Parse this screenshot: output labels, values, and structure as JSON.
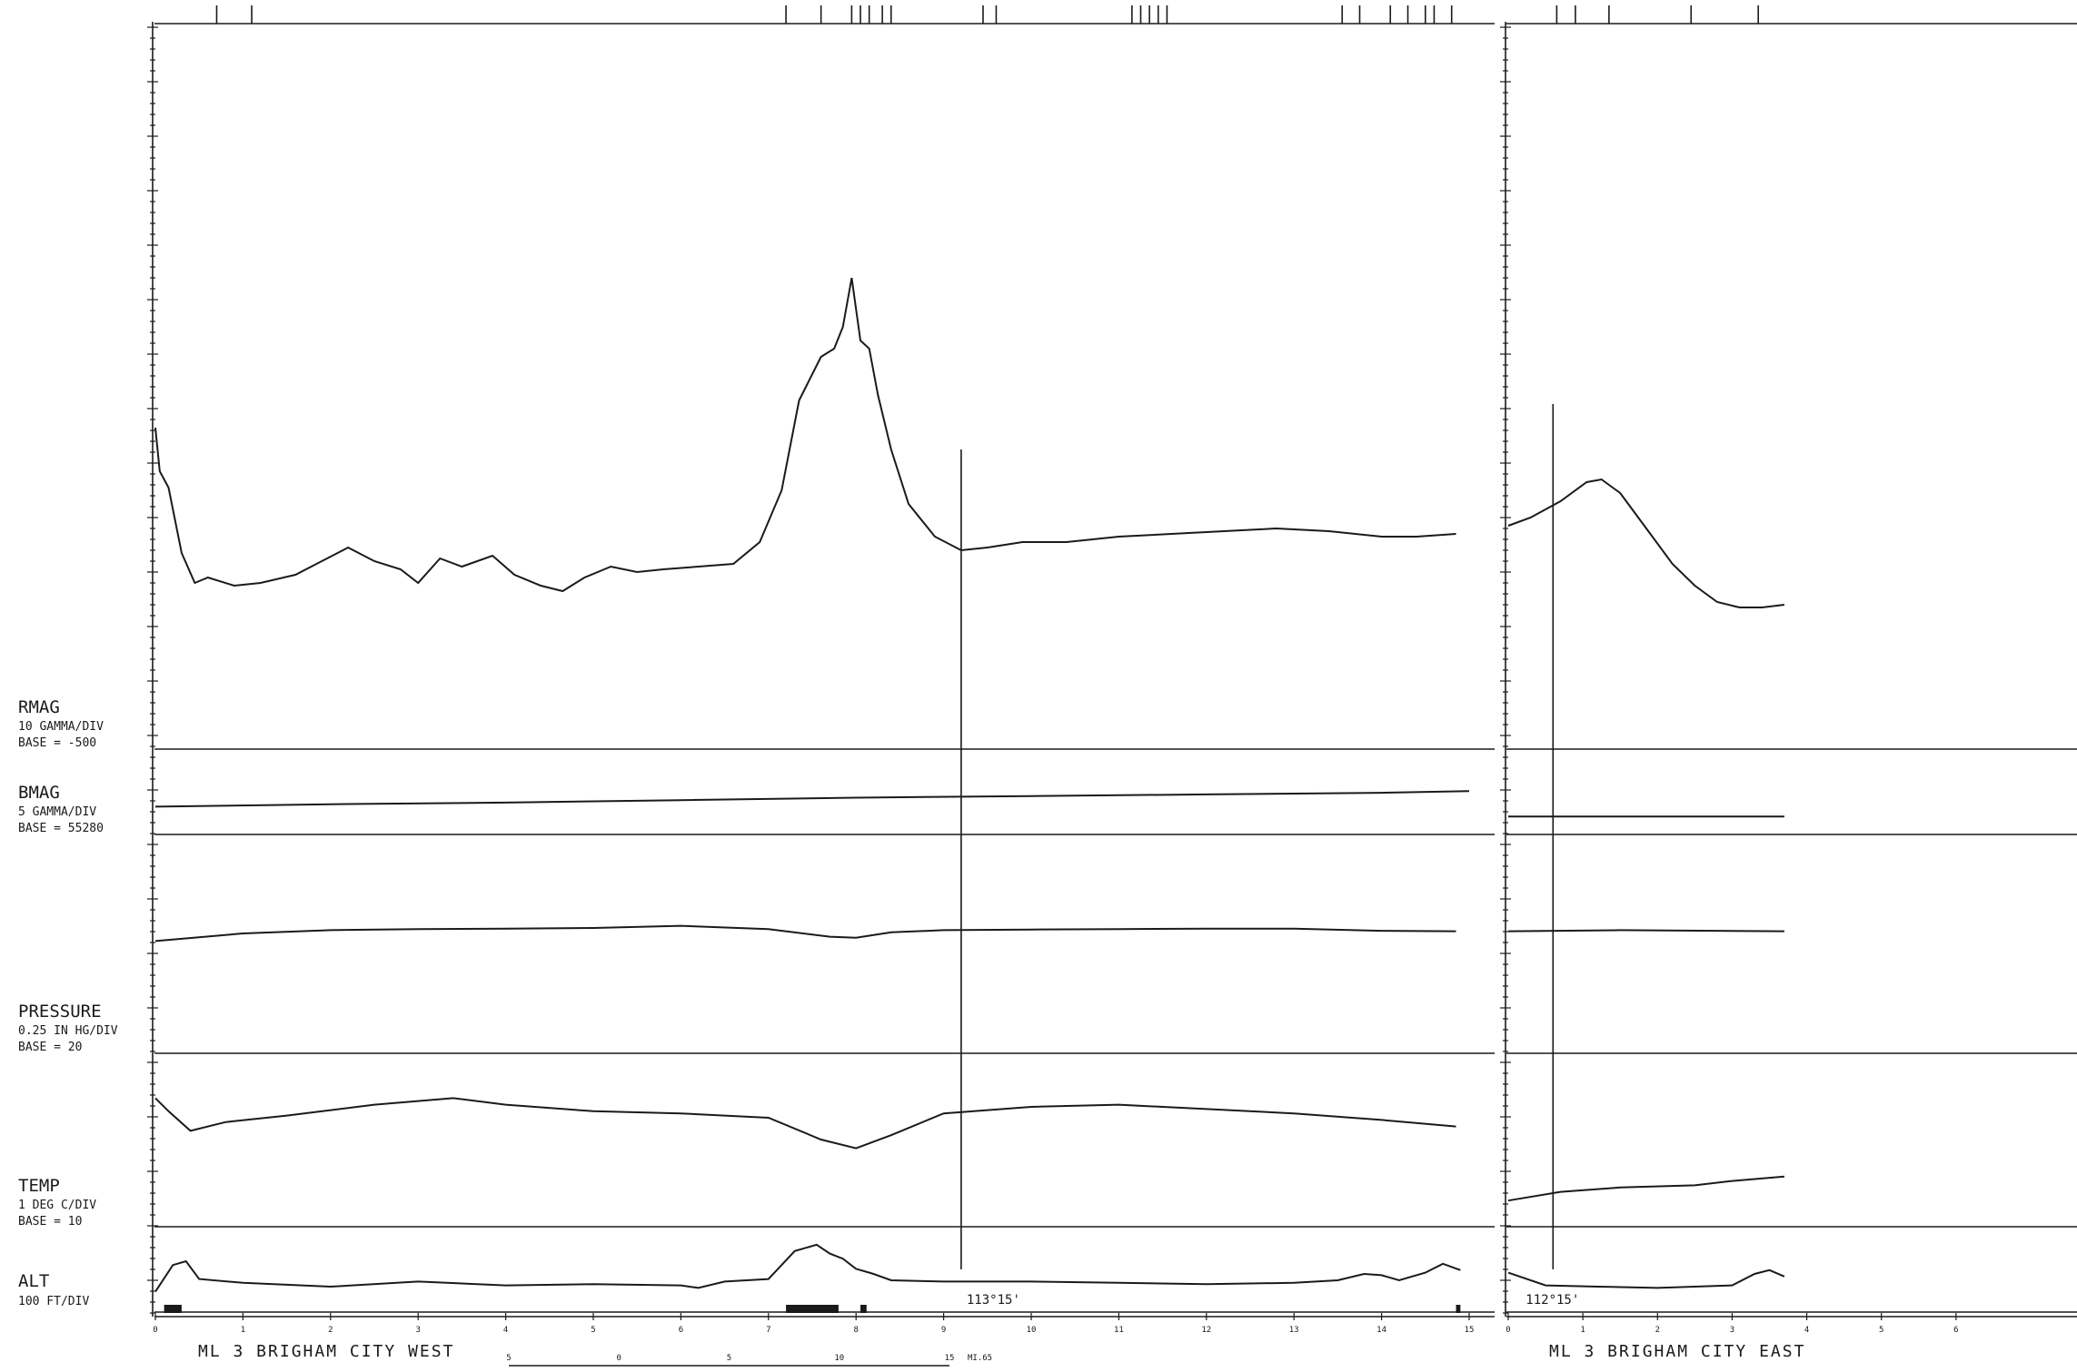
{
  "chart_data": {
    "type": "line",
    "panels": [
      {
        "id": "west",
        "title": "ML  3   BRIGHAM CITY WEST",
        "x_ticks": [
          "0",
          "1",
          "2",
          "3",
          "4",
          "5",
          "6",
          "7",
          "8",
          "9",
          "10",
          "11",
          "12",
          "13",
          "14",
          "15"
        ],
        "xlim": [
          0,
          15
        ],
        "annotation": "113°15'",
        "annotation_x": 9.2,
        "fiducials": [
          0.7,
          1.1,
          7.2,
          7.6,
          7.95,
          8.05,
          8.15,
          8.3,
          8.4,
          9.45,
          9.6,
          11.15,
          11.25,
          11.35,
          11.45,
          11.55,
          13.55,
          13.75,
          14.1,
          14.3,
          14.5,
          14.6,
          14.8
        ]
      },
      {
        "id": "east",
        "title": "ML  3   BRIGHAM CITY EAST",
        "x_ticks": [
          "0",
          "1",
          "2",
          "3",
          "4",
          "5",
          "6"
        ],
        "xlim": [
          0,
          6.5
        ],
        "annotation": "112°15'",
        "annotation_x": 0.6,
        "fiducials": [
          0.65,
          0.9,
          1.35,
          2.45,
          3.35
        ]
      }
    ],
    "series": [
      {
        "name": "RMAG",
        "unit": "10 GAMMA/DIV",
        "base": "BASE =  -500",
        "west": [
          [
            0,
            11.8
          ],
          [
            0.05,
            10.2
          ],
          [
            0.15,
            9.6
          ],
          [
            0.3,
            7.2
          ],
          [
            0.45,
            6.1
          ],
          [
            0.6,
            6.3
          ],
          [
            0.9,
            6.0
          ],
          [
            1.2,
            6.1
          ],
          [
            1.6,
            6.4
          ],
          [
            1.9,
            6.9
          ],
          [
            2.2,
            7.4
          ],
          [
            2.5,
            6.9
          ],
          [
            2.8,
            6.6
          ],
          [
            3.0,
            6.1
          ],
          [
            3.25,
            7.0
          ],
          [
            3.5,
            6.7
          ],
          [
            3.85,
            7.1
          ],
          [
            4.1,
            6.4
          ],
          [
            4.4,
            6.0
          ],
          [
            4.65,
            5.8
          ],
          [
            4.9,
            6.3
          ],
          [
            5.2,
            6.7
          ],
          [
            5.5,
            6.5
          ],
          [
            5.8,
            6.6
          ],
          [
            6.2,
            6.7
          ],
          [
            6.6,
            6.8
          ],
          [
            6.9,
            7.6
          ],
          [
            7.15,
            9.5
          ],
          [
            7.35,
            12.8
          ],
          [
            7.6,
            14.4
          ],
          [
            7.75,
            14.7
          ],
          [
            7.85,
            15.5
          ],
          [
            7.95,
            17.3
          ],
          [
            8.05,
            15.0
          ],
          [
            8.15,
            14.7
          ],
          [
            8.25,
            13.0
          ],
          [
            8.4,
            11.0
          ],
          [
            8.6,
            9.0
          ],
          [
            8.9,
            7.8
          ],
          [
            9.2,
            7.3
          ],
          [
            9.5,
            7.4
          ],
          [
            9.9,
            7.6
          ],
          [
            10.4,
            7.6
          ],
          [
            11.0,
            7.8
          ],
          [
            11.6,
            7.9
          ],
          [
            12.2,
            8.0
          ],
          [
            12.8,
            8.1
          ],
          [
            13.4,
            8.0
          ],
          [
            14.0,
            7.8
          ],
          [
            14.4,
            7.8
          ],
          [
            14.85,
            7.9
          ]
        ],
        "east": [
          [
            0,
            8.2
          ],
          [
            0.3,
            8.5
          ],
          [
            0.7,
            9.1
          ],
          [
            1.05,
            9.8
          ],
          [
            1.25,
            9.9
          ],
          [
            1.5,
            9.4
          ],
          [
            1.85,
            8.1
          ],
          [
            2.2,
            6.8
          ],
          [
            2.5,
            6.0
          ],
          [
            2.8,
            5.4
          ],
          [
            3.1,
            5.2
          ],
          [
            3.4,
            5.2
          ],
          [
            3.7,
            5.3
          ]
        ]
      },
      {
        "name": "BMAG",
        "unit": "5 GAMMA/DIV",
        "base": "BASE =  55280",
        "west": [
          [
            0,
            1.7
          ],
          [
            2,
            1.85
          ],
          [
            4,
            1.95
          ],
          [
            6,
            2.1
          ],
          [
            8,
            2.25
          ],
          [
            10,
            2.35
          ],
          [
            12,
            2.45
          ],
          [
            14,
            2.55
          ],
          [
            15,
            2.65
          ]
        ],
        "east": [
          [
            0,
            1.1
          ],
          [
            3.7,
            1.1
          ]
        ]
      },
      {
        "name": "PRESSURE",
        "unit": "0.25 IN HG/DIV",
        "base": "BASE =  20",
        "west": [
          [
            0,
            5.15
          ],
          [
            1,
            5.5
          ],
          [
            2,
            5.65
          ],
          [
            3,
            5.7
          ],
          [
            4,
            5.72
          ],
          [
            5,
            5.75
          ],
          [
            6,
            5.85
          ],
          [
            7,
            5.7
          ],
          [
            7.7,
            5.35
          ],
          [
            8,
            5.3
          ],
          [
            8.4,
            5.55
          ],
          [
            9,
            5.65
          ],
          [
            10,
            5.68
          ],
          [
            11,
            5.7
          ],
          [
            12,
            5.72
          ],
          [
            13,
            5.72
          ],
          [
            14,
            5.62
          ],
          [
            14.85,
            5.6
          ]
        ],
        "east": [
          [
            0,
            5.6
          ],
          [
            1.5,
            5.65
          ],
          [
            3.7,
            5.6
          ]
        ]
      },
      {
        "name": "TEMP",
        "unit": "1 DEG C/DIV",
        "base": "BASE =  10",
        "west": [
          [
            0,
            5.9
          ],
          [
            0.15,
            5.3
          ],
          [
            0.4,
            4.4
          ],
          [
            0.8,
            4.8
          ],
          [
            1.5,
            5.1
          ],
          [
            2.5,
            5.6
          ],
          [
            3.4,
            5.9
          ],
          [
            4,
            5.6
          ],
          [
            5,
            5.3
          ],
          [
            6,
            5.2
          ],
          [
            7,
            5.0
          ],
          [
            7.6,
            4.0
          ],
          [
            8,
            3.6
          ],
          [
            8.4,
            4.2
          ],
          [
            9,
            5.2
          ],
          [
            10,
            5.5
          ],
          [
            11,
            5.6
          ],
          [
            12,
            5.4
          ],
          [
            13,
            5.2
          ],
          [
            14,
            4.9
          ],
          [
            14.85,
            4.6
          ]
        ],
        "east": [
          [
            0,
            1.2
          ],
          [
            0.7,
            1.6
          ],
          [
            1.5,
            1.8
          ],
          [
            2.5,
            1.9
          ],
          [
            3.0,
            2.1
          ],
          [
            3.7,
            2.3
          ]
        ]
      },
      {
        "name": "ALT",
        "unit": "100 FT/DIV",
        "base": "",
        "west": [
          [
            0,
            1.6
          ],
          [
            0.2,
            3.7
          ],
          [
            0.35,
            4.0
          ],
          [
            0.5,
            2.6
          ],
          [
            1,
            2.3
          ],
          [
            2,
            2.0
          ],
          [
            3,
            2.4
          ],
          [
            4,
            2.1
          ],
          [
            5,
            2.2
          ],
          [
            6,
            2.1
          ],
          [
            6.2,
            1.9
          ],
          [
            6.5,
            2.4
          ],
          [
            7,
            2.6
          ],
          [
            7.3,
            4.8
          ],
          [
            7.55,
            5.3
          ],
          [
            7.7,
            4.6
          ],
          [
            7.85,
            4.2
          ],
          [
            8,
            3.4
          ],
          [
            8.2,
            3.0
          ],
          [
            8.4,
            2.5
          ],
          [
            9,
            2.4
          ],
          [
            10,
            2.4
          ],
          [
            11,
            2.3
          ],
          [
            12,
            2.2
          ],
          [
            13,
            2.3
          ],
          [
            13.5,
            2.5
          ],
          [
            13.8,
            3.0
          ],
          [
            14,
            2.9
          ],
          [
            14.2,
            2.5
          ],
          [
            14.5,
            3.1
          ],
          [
            14.7,
            3.8
          ],
          [
            14.9,
            3.3
          ]
        ],
        "east": [
          [
            0,
            3.1
          ],
          [
            0.5,
            2.1
          ],
          [
            1.2,
            2.0
          ],
          [
            2,
            1.9
          ],
          [
            3,
            2.1
          ],
          [
            3.3,
            3.0
          ],
          [
            3.5,
            3.3
          ],
          [
            3.7,
            2.8
          ]
        ]
      }
    ],
    "scale_bar": {
      "ticks": [
        "5",
        "0",
        "5",
        "10",
        "15"
      ],
      "label": "MI.65"
    }
  }
}
